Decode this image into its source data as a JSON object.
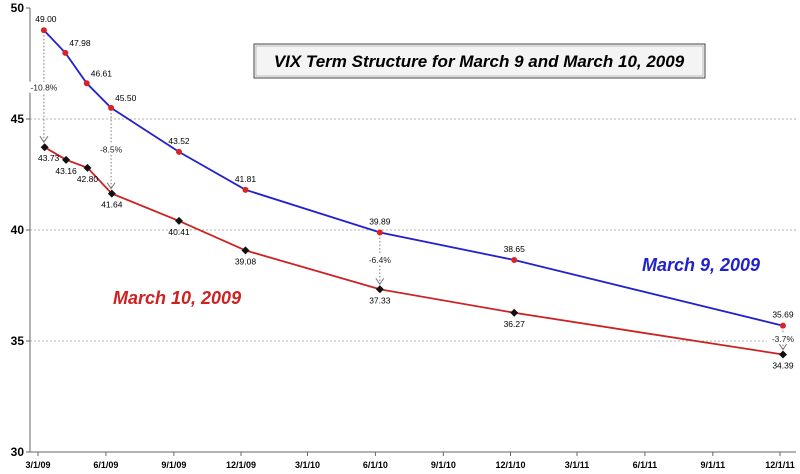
{
  "chart_data": {
    "type": "line",
    "title": "VIX Term Structure for March 9 and March 10, 2009",
    "ylim": [
      30,
      50
    ],
    "yticks": [
      "30",
      "35",
      "40",
      "45",
      "50"
    ],
    "xlim": [
      "2009-03-01",
      "2011-12-01"
    ],
    "xticks": [
      {
        "date": "2009-03-01",
        "label": "3/1/09"
      },
      {
        "date": "2009-06-01",
        "label": "6/1/09"
      },
      {
        "date": "2009-09-01",
        "label": "9/1/09"
      },
      {
        "date": "2009-12-01",
        "label": "12/1/09"
      },
      {
        "date": "2010-03-01",
        "label": "3/1/10"
      },
      {
        "date": "2010-06-01",
        "label": "6/1/10"
      },
      {
        "date": "2010-09-01",
        "label": "9/1/10"
      },
      {
        "date": "2010-12-01",
        "label": "12/1/10"
      },
      {
        "date": "2011-03-01",
        "label": "3/1/11"
      },
      {
        "date": "2011-06-01",
        "label": "6/1/11"
      },
      {
        "date": "2011-09-01",
        "label": "9/1/11"
      },
      {
        "date": "2011-12-01",
        "label": "12/1/11"
      }
    ],
    "grid": true,
    "series": [
      {
        "name": "March 9, 2009",
        "color": "#2222cc",
        "marker_color": "#dd2222",
        "points": [
          {
            "x": "2009-03-09",
            "y": 49.0,
            "label": "49.00"
          },
          {
            "x": "2009-04-07",
            "y": 47.98,
            "label": "47.98"
          },
          {
            "x": "2009-05-06",
            "y": 46.61,
            "label": "46.61"
          },
          {
            "x": "2009-06-08",
            "y": 45.5,
            "label": "45.50"
          },
          {
            "x": "2009-09-08",
            "y": 43.52,
            "label": "43.52"
          },
          {
            "x": "2009-12-07",
            "y": 41.81,
            "label": "41.81"
          },
          {
            "x": "2010-06-07",
            "y": 39.89,
            "label": "39.89"
          },
          {
            "x": "2010-12-06",
            "y": 38.65,
            "label": "38.65"
          },
          {
            "x": "2011-12-05",
            "y": 35.69,
            "label": "35.69"
          }
        ]
      },
      {
        "name": "March 10, 2009",
        "color": "#cc2222",
        "marker_color": "#111111",
        "points": [
          {
            "x": "2009-03-10",
            "y": 43.73,
            "label": "43.73"
          },
          {
            "x": "2009-04-08",
            "y": 43.16,
            "label": "43.16"
          },
          {
            "x": "2009-05-07",
            "y": 42.8,
            "label": "42.80"
          },
          {
            "x": "2009-06-09",
            "y": 41.64,
            "label": "41.64"
          },
          {
            "x": "2009-09-08",
            "y": 40.41,
            "label": "40.41"
          },
          {
            "x": "2009-12-07",
            "y": 39.08,
            "label": "39.08"
          },
          {
            "x": "2010-06-07",
            "y": 37.33,
            "label": "37.33"
          },
          {
            "x": "2010-12-06",
            "y": 36.27,
            "label": "36.27"
          },
          {
            "x": "2011-12-05",
            "y": 34.39,
            "label": "34.39"
          }
        ]
      }
    ],
    "annotations": [
      {
        "text": "-10.8%",
        "x": "2009-03-09",
        "from_y": 49.0,
        "to_y": 43.73
      },
      {
        "text": "-8.5%",
        "x": "2009-06-08",
        "from_y": 45.5,
        "to_y": 41.64
      },
      {
        "text": "-6.4%",
        "x": "2010-06-07",
        "from_y": 39.89,
        "to_y": 37.33
      },
      {
        "text": "-3.7%",
        "x": "2011-12-05",
        "from_y": 35.69,
        "to_y": 34.39
      }
    ]
  }
}
